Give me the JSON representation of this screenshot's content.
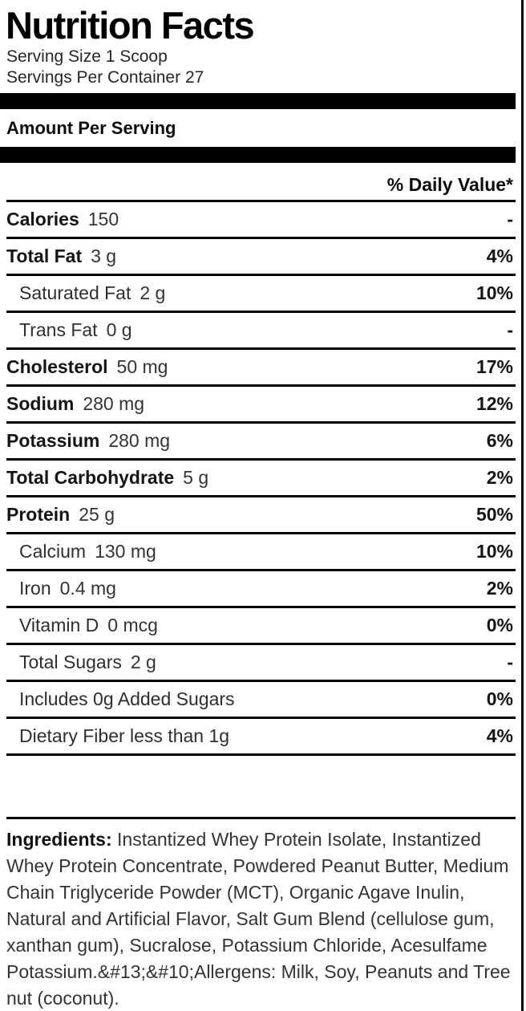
{
  "header": {
    "title": "Nutrition Facts",
    "serving_size": "Serving Size 1 Scoop",
    "servings_per_container": "Servings Per Container 27",
    "amount_per_serving": "Amount Per Serving",
    "daily_value_header": "% Daily Value*"
  },
  "rows": [
    {
      "label": "Calories",
      "amount": "150",
      "dv": "-"
    },
    {
      "label": "Total Fat",
      "amount": "3 g",
      "dv": "4%"
    },
    {
      "label": "Saturated Fat",
      "amount": "2 g",
      "dv": "10%"
    },
    {
      "label": "Trans Fat",
      "amount": "0 g",
      "dv": "-"
    },
    {
      "label": "Cholesterol",
      "amount": "50 mg",
      "dv": "17%"
    },
    {
      "label": "Sodium",
      "amount": "280 mg",
      "dv": "12%"
    },
    {
      "label": "Potassium",
      "amount": "280 mg",
      "dv": "6%"
    },
    {
      "label": "Total Carbohydrate",
      "amount": "5 g",
      "dv": "2%"
    },
    {
      "label": "Protein",
      "amount": "25 g",
      "dv": "50%"
    },
    {
      "label": "Calcium",
      "amount": "130 mg",
      "dv": "10%"
    },
    {
      "label": "Iron",
      "amount": "0.4 mg",
      "dv": "2%"
    },
    {
      "label": "Vitamin D",
      "amount": "0 mcg",
      "dv": "0%"
    },
    {
      "label": "Total Sugars",
      "amount": "2 g",
      "dv": "-"
    },
    {
      "label": "Includes 0g Added Sugars",
      "amount": "",
      "dv": "0%"
    },
    {
      "label": "Dietary Fiber less than 1g",
      "amount": "",
      "dv": "4%"
    }
  ],
  "ingredients": {
    "label": "Ingredients:",
    "text": " Instantized Whey Protein Isolate, Instantized Whey Protein Concentrate, Powdered Peanut Butter, Medium Chain Triglyceride Powder (MCT), Organic Agave Inulin, Natural and Artificial Flavor, Salt Gum Blend (cellulose gum, xanthan gum), Sucralose, Potassium Chloride, Acesulfame Potassium.&#13;&#10;Allergens: Milk, Soy, Peanuts and Tree nut (coconut)."
  },
  "colors": {
    "text_primary": "#141414",
    "text_secondary": "#333333",
    "bar": "#000000"
  }
}
